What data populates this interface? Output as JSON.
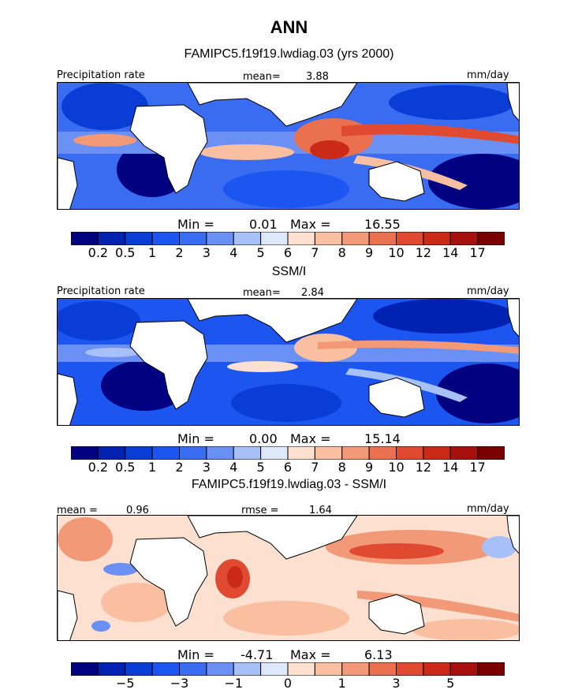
{
  "figure": {
    "title": "ANN",
    "colors": {
      "precip_scale": [
        "#000080",
        "#0022b3",
        "#0a3cd6",
        "#1c55f0",
        "#3a6cf2",
        "#6a90f5",
        "#a8c0f8",
        "#dde8fb",
        "#fde0d0",
        "#f9bfa0",
        "#f29a78",
        "#ea7050",
        "#e04a30",
        "#cc2a18",
        "#a81010",
        "#7a0000"
      ],
      "diff_scale": [
        "#000080",
        "#0022b3",
        "#0a3cd6",
        "#1c55f0",
        "#3a6cf2",
        "#6a90f5",
        "#a8c0f8",
        "#dde8fb",
        "#fde0d0",
        "#f9bfa0",
        "#f29a78",
        "#ea7050",
        "#e04a30",
        "#cc2a18",
        "#a81010",
        "#7a0000"
      ]
    }
  },
  "panels": [
    {
      "subtitle": "FAMIPC5.f19f19.lwdiag.03 (yrs 2000)",
      "variable_label": "Precipitation rate",
      "mean_label": "mean=",
      "mean_value": "3.88",
      "units": "mm/day",
      "minmax": {
        "min_label": "Min =",
        "min": "0.01",
        "max_label": "Max =",
        "max": "16.55"
      },
      "colorbar_ticks": [
        "0.2",
        "0.5",
        "1",
        "2",
        "3",
        "4",
        "5",
        "6",
        "7",
        "8",
        "9",
        "10",
        "12",
        "14",
        "17"
      ]
    },
    {
      "subtitle": "SSM/I",
      "variable_label": "Precipitation rate",
      "mean_label": "mean=",
      "mean_value": "2.84",
      "units": "mm/day",
      "minmax": {
        "min_label": "Min =",
        "min": "0.00",
        "max_label": "Max =",
        "max": "15.14"
      },
      "colorbar_ticks": [
        "0.2",
        "0.5",
        "1",
        "2",
        "3",
        "4",
        "5",
        "6",
        "7",
        "8",
        "9",
        "10",
        "12",
        "14",
        "17"
      ]
    },
    {
      "subtitle": "FAMIPC5.f19f19.lwdiag.03 - SSM/I",
      "variable_label": "mean =",
      "mean_value": "0.96",
      "rmse_label": "rmse =",
      "rmse_value": "1.64",
      "units": "mm/day",
      "minmax": {
        "min_label": "Min =",
        "min": "-4.71",
        "max_label": "Max =",
        "max": "6.13"
      },
      "colorbar_ticks": [
        "−5",
        "−3",
        "−1",
        "0",
        "1",
        "3",
        "5"
      ]
    }
  ]
}
